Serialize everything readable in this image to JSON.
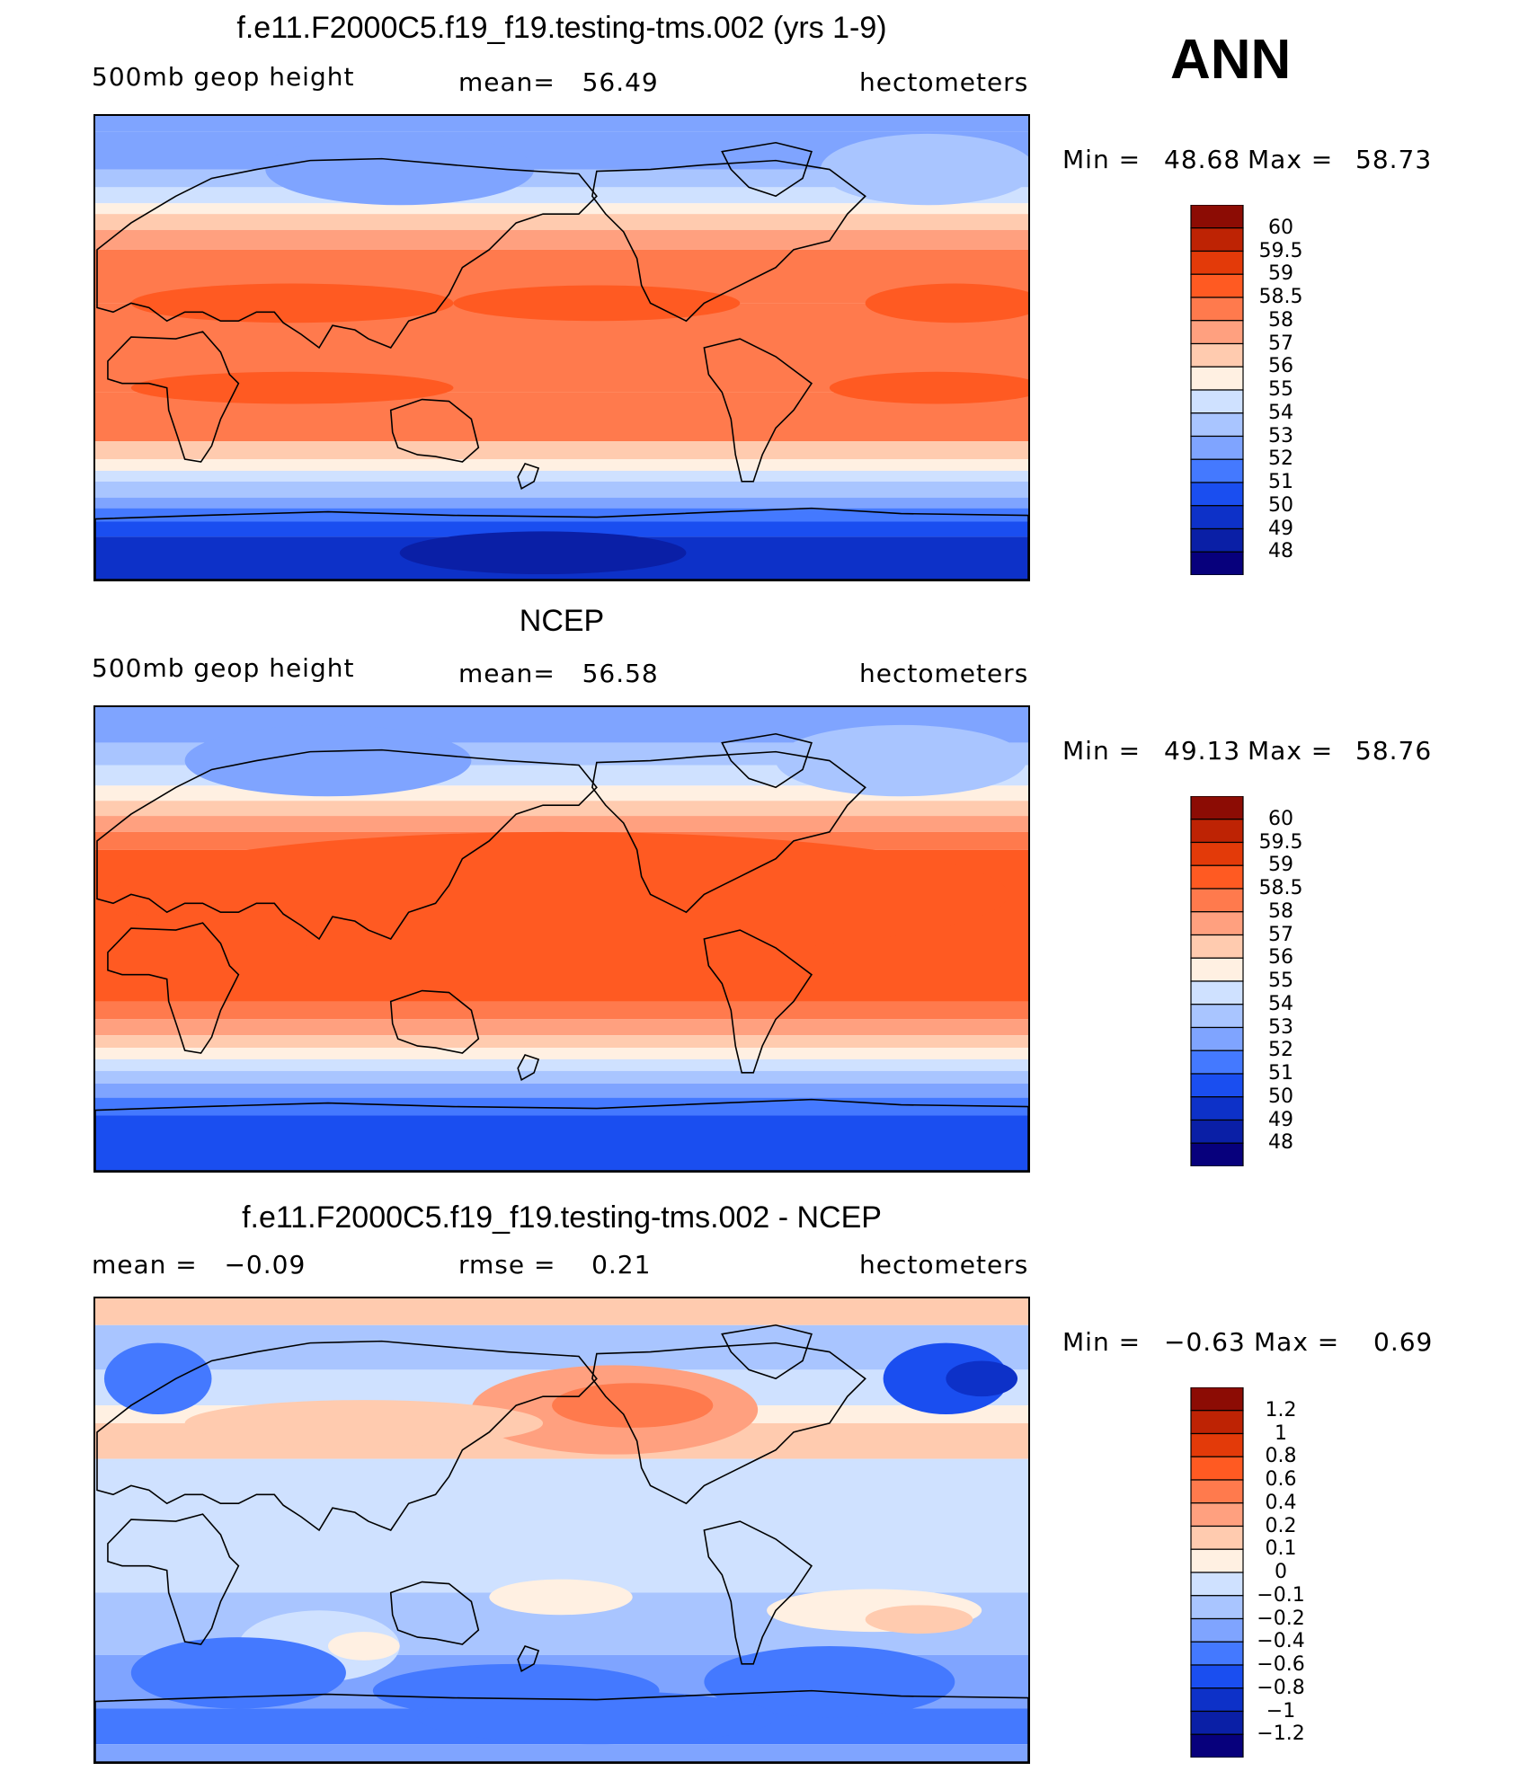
{
  "season_label": "ANN",
  "colors": {
    "scale": [
      "#07007c",
      "#0a1fa6",
      "#0d31c8",
      "#1a4ef0",
      "#4479ff",
      "#7fa4ff",
      "#a9c5ff",
      "#cfe1ff",
      "#fff0e2",
      "#ffcbaf",
      "#ffa07f",
      "#ff7a4d",
      "#ff5a22",
      "#e33a09",
      "#be2304",
      "#8c0c04"
    ],
    "coast": "#000000"
  },
  "panels": [
    {
      "title": "f.e11.F2000C5.f19_f19.testing-tms.002 (yrs 1-9)",
      "left_label": "500mb geop height",
      "center_label": "mean=   56.49",
      "right_label": "hectometers",
      "min_label": "Min =",
      "min_value": "48.68",
      "max_label": "Max =",
      "max_value": "58.73",
      "colorbar_labels": [
        "60",
        "59.5",
        "59",
        "58.5",
        "58",
        "57",
        "56",
        "55",
        "54",
        "53",
        "52",
        "51",
        "50",
        "49",
        "48"
      ],
      "field": "model"
    },
    {
      "title": "NCEP",
      "left_label": "500mb geop height",
      "center_label": "mean=   56.58",
      "right_label": "hectometers",
      "min_label": "Min =",
      "min_value": "49.13",
      "max_label": "Max =",
      "max_value": "58.76",
      "colorbar_labels": [
        "60",
        "59.5",
        "59",
        "58.5",
        "58",
        "57",
        "56",
        "55",
        "54",
        "53",
        "52",
        "51",
        "50",
        "49",
        "48"
      ],
      "field": "obs"
    },
    {
      "title": "f.e11.F2000C5.f19_f19.testing-tms.002 - NCEP",
      "left_label": "mean =   −0.09",
      "center_label": "rmse =    0.21",
      "right_label": "hectometers",
      "min_label": "Min =",
      "min_value": "−0.63",
      "max_label": "Max =",
      "max_value": "0.69",
      "colorbar_labels": [
        "1.2",
        "1",
        "0.8",
        "0.6",
        "0.4",
        "0.2",
        "0.1",
        "0",
        "−0.1",
        "−0.2",
        "−0.4",
        "−0.6",
        "−0.8",
        "−1",
        "−1.2"
      ],
      "field": "diff"
    }
  ]
}
